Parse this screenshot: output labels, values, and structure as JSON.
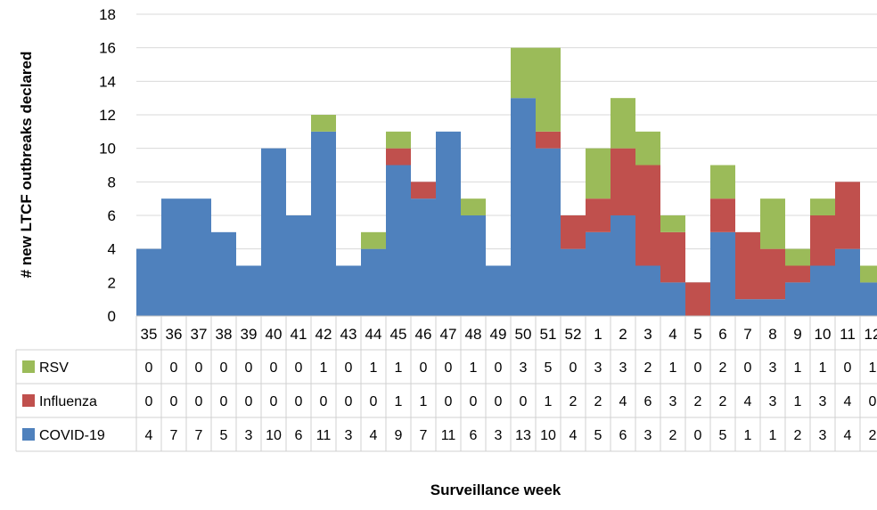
{
  "chart_data": {
    "type": "bar",
    "stacked": true,
    "ylabel": "# new LTCF outbreaks declared",
    "xlabel": "Surveillance week",
    "ylim": [
      0,
      18
    ],
    "y_ticks": [
      0,
      2,
      4,
      6,
      8,
      10,
      12,
      14,
      16,
      18
    ],
    "grid": true,
    "legend": "data-table",
    "categories": [
      "35",
      "36",
      "37",
      "38",
      "39",
      "40",
      "41",
      "42",
      "43",
      "44",
      "45",
      "46",
      "47",
      "48",
      "49",
      "50",
      "51",
      "52",
      "1",
      "2",
      "3",
      "4",
      "5",
      "6",
      "7",
      "8",
      "9",
      "10",
      "11",
      "12"
    ],
    "series": [
      {
        "name": "COVID-19",
        "color": "#4f81bd",
        "values": [
          4,
          7,
          7,
          5,
          3,
          10,
          6,
          11,
          3,
          4,
          9,
          7,
          11,
          6,
          3,
          13,
          10,
          4,
          5,
          6,
          3,
          2,
          0,
          5,
          1,
          1,
          2,
          3,
          4,
          2
        ]
      },
      {
        "name": "Influenza",
        "color": "#c0504d",
        "values": [
          0,
          0,
          0,
          0,
          0,
          0,
          0,
          0,
          0,
          0,
          1,
          1,
          0,
          0,
          0,
          0,
          1,
          2,
          2,
          4,
          6,
          3,
          2,
          2,
          4,
          3,
          1,
          3,
          4,
          0
        ]
      },
      {
        "name": "RSV",
        "color": "#9bbb59",
        "values": [
          0,
          0,
          0,
          0,
          0,
          0,
          0,
          1,
          0,
          1,
          1,
          0,
          0,
          1,
          0,
          3,
          5,
          0,
          3,
          3,
          2,
          1,
          0,
          2,
          0,
          3,
          1,
          1,
          0,
          1
        ]
      }
    ],
    "table_order": [
      "RSV",
      "Influenza",
      "COVID-19"
    ]
  }
}
